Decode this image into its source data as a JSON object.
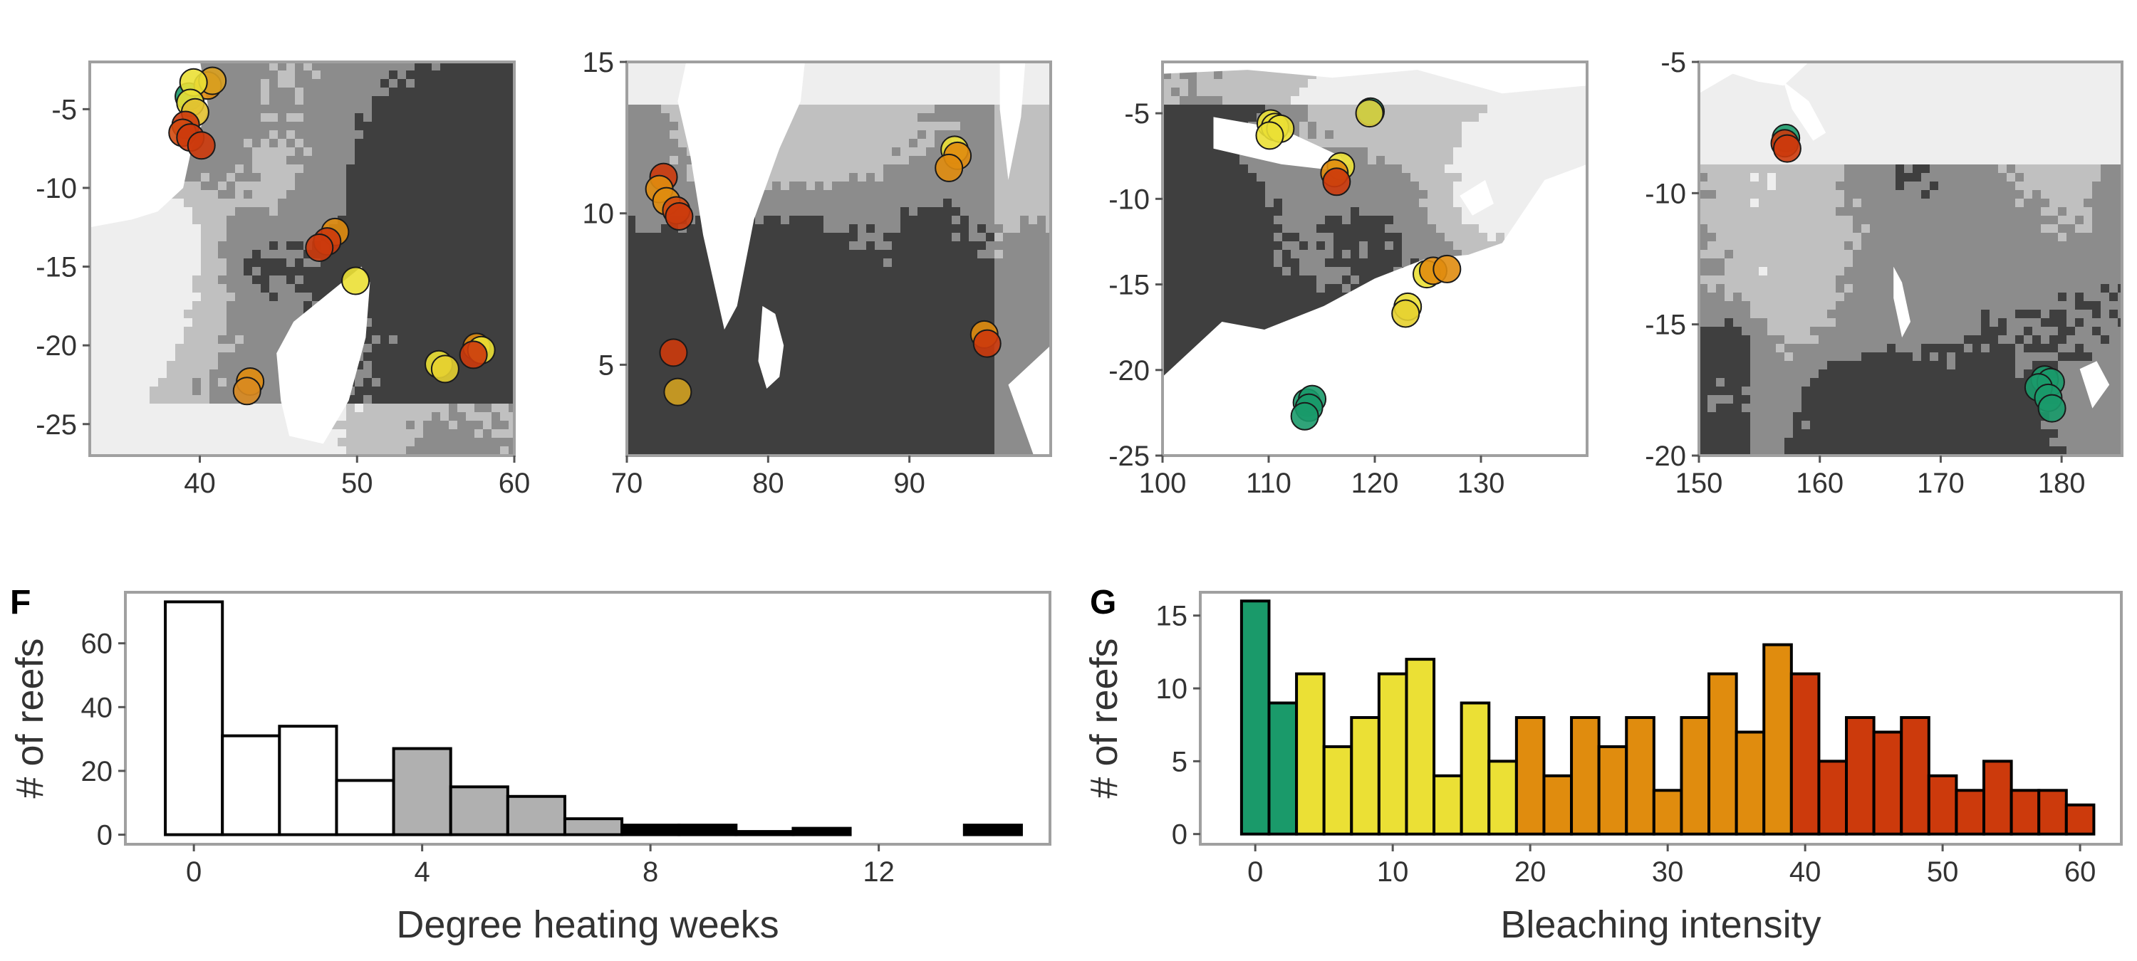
{
  "colors": {
    "frame": "#a0a0a0",
    "land": "#ffffff",
    "dhw_class_0": "#eeeeee",
    "dhw_class_1": "#c0c0c0",
    "dhw_class_2": "#8c8c8c",
    "dhw_class_3": "#3f3f3f",
    "bleach_none": "#1a9a6a",
    "bleach_low": "#ebe035",
    "bleach_mid": "#e08c0e",
    "bleach_high": "#cc3a0c",
    "dhw_bar_low": "#ffffff",
    "dhw_bar_mid": "#b0b0b0",
    "dhw_bar_high": "#000000"
  },
  "chart_data": [
    {
      "type": "scatter",
      "subtype": "map",
      "xlim": [
        33,
        60
      ],
      "ylim": [
        -27,
        -2
      ],
      "x_ticks": [
        40,
        50,
        60
      ],
      "y_ticks": [
        -5,
        -10,
        -15,
        -20,
        -25
      ],
      "points": [
        {
          "x": 39.3,
          "y": -4.2,
          "c": "#1a9a6a"
        },
        {
          "x": 40.5,
          "y": -3.5,
          "c": "#e08c0e"
        },
        {
          "x": 40.8,
          "y": -3.2,
          "c": "#d9a020"
        },
        {
          "x": 39.6,
          "y": -3.3,
          "c": "#ebe035"
        },
        {
          "x": 39.4,
          "y": -4.6,
          "c": "#ebe035"
        },
        {
          "x": 39.7,
          "y": -5.2,
          "c": "#e2c030"
        },
        {
          "x": 39.1,
          "y": -6.0,
          "c": "#cc3a0c"
        },
        {
          "x": 38.9,
          "y": -6.5,
          "c": "#d24a10"
        },
        {
          "x": 39.4,
          "y": -6.8,
          "c": "#cc3a0c"
        },
        {
          "x": 40.1,
          "y": -7.3,
          "c": "#cc3a0c"
        },
        {
          "x": 48.6,
          "y": -12.8,
          "c": "#e08c0e"
        },
        {
          "x": 48.1,
          "y": -13.4,
          "c": "#cc3a0c"
        },
        {
          "x": 47.6,
          "y": -13.8,
          "c": "#cc3a0c"
        },
        {
          "x": 49.9,
          "y": -15.9,
          "c": "#ebe035"
        },
        {
          "x": 43.2,
          "y": -22.3,
          "c": "#e08c0e"
        },
        {
          "x": 43.0,
          "y": -22.9,
          "c": "#d98a20"
        },
        {
          "x": 55.2,
          "y": -21.2,
          "c": "#ebe035"
        },
        {
          "x": 55.6,
          "y": -21.5,
          "c": "#e6d030"
        },
        {
          "x": 57.6,
          "y": -20.1,
          "c": "#e08c0e"
        },
        {
          "x": 57.9,
          "y": -20.3,
          "c": "#ebe035"
        },
        {
          "x": 57.4,
          "y": -20.6,
          "c": "#cc3a0c"
        }
      ]
    },
    {
      "type": "scatter",
      "subtype": "map",
      "xlim": [
        70,
        100
      ],
      "ylim": [
        2,
        15
      ],
      "x_ticks": [
        70,
        80,
        90
      ],
      "y_ticks": [
        5,
        10,
        15
      ],
      "points": [
        {
          "x": 72.6,
          "y": 11.2,
          "c": "#cc3a0c"
        },
        {
          "x": 72.3,
          "y": 10.8,
          "c": "#e08c0e"
        },
        {
          "x": 72.8,
          "y": 10.4,
          "c": "#e08c0e"
        },
        {
          "x": 73.5,
          "y": 10.1,
          "c": "#d04a10"
        },
        {
          "x": 73.7,
          "y": 9.9,
          "c": "#cc3a0c"
        },
        {
          "x": 73.3,
          "y": 5.4,
          "c": "#cc3a0c"
        },
        {
          "x": 73.6,
          "y": 4.1,
          "c": "#d0a020"
        },
        {
          "x": 93.2,
          "y": 12.1,
          "c": "#ebe035"
        },
        {
          "x": 93.4,
          "y": 11.9,
          "c": "#e08c0e"
        },
        {
          "x": 92.8,
          "y": 11.5,
          "c": "#e08c0e"
        },
        {
          "x": 95.3,
          "y": 6.0,
          "c": "#e08c0e"
        },
        {
          "x": 95.5,
          "y": 5.7,
          "c": "#cc3a0c"
        }
      ]
    },
    {
      "type": "scatter",
      "subtype": "map",
      "xlim": [
        100,
        140
      ],
      "ylim": [
        -25,
        -2
      ],
      "x_ticks": [
        100,
        110,
        120,
        130
      ],
      "y_ticks": [
        -5,
        -10,
        -15,
        -20,
        -25
      ],
      "points": [
        {
          "x": 110.2,
          "y": -5.6,
          "c": "#ebe035"
        },
        {
          "x": 110.6,
          "y": -5.8,
          "c": "#ebe035"
        },
        {
          "x": 111.1,
          "y": -5.9,
          "c": "#ebe035"
        },
        {
          "x": 110.1,
          "y": -6.3,
          "c": "#ebe035"
        },
        {
          "x": 119.6,
          "y": -4.9,
          "c": "#1a9a6a"
        },
        {
          "x": 119.5,
          "y": -5.0,
          "c": "#e0d040"
        },
        {
          "x": 116.8,
          "y": -8.1,
          "c": "#ebe035"
        },
        {
          "x": 116.2,
          "y": -8.5,
          "c": "#e08c0e"
        },
        {
          "x": 116.4,
          "y": -9.0,
          "c": "#cc3a0c"
        },
        {
          "x": 124.9,
          "y": -14.4,
          "c": "#ebe035"
        },
        {
          "x": 125.5,
          "y": -14.2,
          "c": "#e08c0e"
        },
        {
          "x": 126.8,
          "y": -14.1,
          "c": "#e08c0e"
        },
        {
          "x": 123.1,
          "y": -16.3,
          "c": "#ebe035"
        },
        {
          "x": 122.9,
          "y": -16.7,
          "c": "#e6d030"
        },
        {
          "x": 113.6,
          "y": -21.9,
          "c": "#1a9a6a"
        },
        {
          "x": 114.1,
          "y": -21.7,
          "c": "#1a9a6a"
        },
        {
          "x": 113.8,
          "y": -22.2,
          "c": "#1a9a6a"
        },
        {
          "x": 113.4,
          "y": -22.7,
          "c": "#1a9a6a"
        }
      ]
    },
    {
      "type": "scatter",
      "subtype": "map",
      "xlim": [
        150,
        185
      ],
      "ylim": [
        -20,
        -5
      ],
      "x_ticks": [
        150,
        160,
        170,
        180
      ],
      "y_ticks": [
        -5,
        -10,
        -15,
        -20
      ],
      "points": [
        {
          "x": 157.2,
          "y": -7.9,
          "c": "#1a9a6a"
        },
        {
          "x": 157.1,
          "y": -8.1,
          "c": "#cc3a0c"
        },
        {
          "x": 157.3,
          "y": -8.3,
          "c": "#cc3a0c"
        },
        {
          "x": 178.6,
          "y": -17.1,
          "c": "#1a9a6a"
        },
        {
          "x": 179.1,
          "y": -17.2,
          "c": "#1a9a6a"
        },
        {
          "x": 178.1,
          "y": -17.4,
          "c": "#1a9a6a"
        },
        {
          "x": 178.9,
          "y": -17.8,
          "c": "#1a9a6a"
        },
        {
          "x": 179.2,
          "y": -18.2,
          "c": "#1a9a6a"
        }
      ]
    },
    {
      "type": "bar",
      "panel_label": "F",
      "title": "",
      "xlabel": "Degree heating weeks",
      "ylabel": "# of reefs",
      "xlim": [
        -1.2,
        15
      ],
      "ylim": [
        -3,
        76
      ],
      "x_ticks": [
        0,
        4,
        8,
        12
      ],
      "y_ticks": [
        0,
        20,
        40,
        60
      ],
      "x": [
        0,
        1,
        2,
        3,
        4,
        5,
        6,
        7,
        8,
        9,
        10,
        11,
        12,
        13,
        14
      ],
      "values": [
        73,
        31,
        34,
        17,
        27,
        15,
        12,
        5,
        3,
        3,
        1,
        2,
        0,
        0,
        3
      ],
      "bar_colors": [
        "#ffffff",
        "#ffffff",
        "#ffffff",
        "#ffffff",
        "#b0b0b0",
        "#b0b0b0",
        "#b0b0b0",
        "#b0b0b0",
        "#000000",
        "#000000",
        "#000000",
        "#000000",
        "#000000",
        "#000000",
        "#000000"
      ],
      "grid": false
    },
    {
      "type": "bar",
      "panel_label": "G",
      "title": "",
      "xlabel": "Bleaching intensity",
      "ylabel": "# of reefs",
      "xlim": [
        -4,
        63
      ],
      "ylim": [
        -0.7,
        16.6
      ],
      "x_ticks": [
        0,
        10,
        20,
        30,
        40,
        50,
        60
      ],
      "y_ticks": [
        0,
        5,
        10,
        15
      ],
      "x": [
        0,
        2,
        4,
        6,
        8,
        10,
        12,
        14,
        16,
        18,
        20,
        22,
        24,
        26,
        28,
        30,
        32,
        34,
        36,
        38,
        40,
        42,
        44,
        46,
        48,
        50,
        52,
        54,
        56,
        58,
        60
      ],
      "values": [
        16,
        9,
        11,
        6,
        8,
        11,
        12,
        4,
        9,
        5,
        8,
        4,
        8,
        6,
        8,
        3,
        8,
        11,
        7,
        13,
        11,
        5,
        8,
        7,
        8,
        4,
        3,
        5,
        3,
        3,
        2
      ],
      "bar_colors": [
        "#1a9a6a",
        "#1a9a6a",
        "#ebe035",
        "#ebe035",
        "#ebe035",
        "#ebe035",
        "#ebe035",
        "#ebe035",
        "#ebe035",
        "#ebe035",
        "#e08c0e",
        "#e08c0e",
        "#e08c0e",
        "#e08c0e",
        "#e08c0e",
        "#e08c0e",
        "#e08c0e",
        "#e08c0e",
        "#e08c0e",
        "#e08c0e",
        "#cc3a0c",
        "#cc3a0c",
        "#cc3a0c",
        "#cc3a0c",
        "#cc3a0c",
        "#cc3a0c",
        "#cc3a0c",
        "#cc3a0c",
        "#cc3a0c",
        "#cc3a0c",
        "#cc3a0c"
      ],
      "grid": false
    }
  ]
}
